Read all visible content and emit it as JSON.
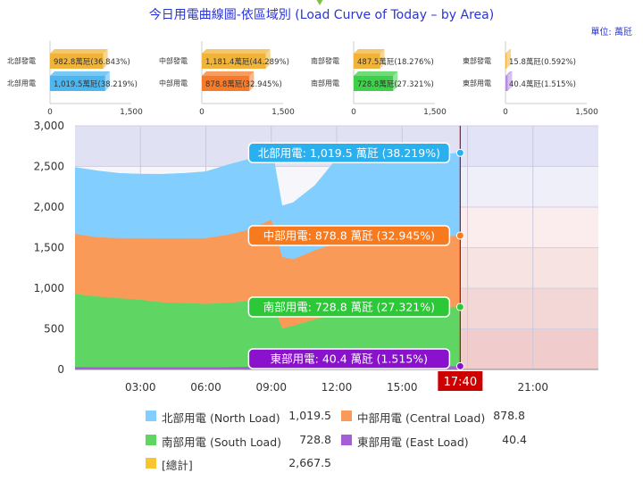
{
  "header": {
    "title": "今日用電曲線圖-依區域別 (Load Curve of Today – by Area)",
    "unit": "單位: 萬瓩"
  },
  "mini_charts": [
    {
      "gen_label": "北部發電",
      "use_label": "北部用電",
      "gen_value": 982.8,
      "gen_text": "982.8萬瓩(36.843%)",
      "use_value": 1019.5,
      "use_text": "1,019.5萬瓩(38.219%)",
      "use_color": "#4db6f0"
    },
    {
      "gen_label": "中部發電",
      "use_label": "中部用電",
      "gen_value": 1181.4,
      "gen_text": "1,181.4萬瓩(44.289%)",
      "use_value": 878.8,
      "use_text": "878.8萬瓩(32.945%)",
      "use_color": "#f57a2a"
    },
    {
      "gen_label": "南部發電",
      "use_label": "南部用電",
      "gen_value": 487.5,
      "gen_text": "487.5萬瓩(18.276%)",
      "use_value": 728.8,
      "use_text": "728.8萬瓩(27.321%)",
      "use_color": "#3fd04a"
    },
    {
      "gen_label": "東部發電",
      "use_label": "東部用電",
      "gen_value": 15.8,
      "gen_text": "15.8萬瓩(0.592%)",
      "use_value": 40.4,
      "use_text": "40.4萬瓩(1.515%)",
      "use_color": "#b48ee0"
    }
  ],
  "mini_axis": {
    "ticks": [
      "0",
      "1,500"
    ],
    "max": 1500,
    "gen_color": "#f0b43a"
  },
  "colors": {
    "north": "#82cfff",
    "central": "#fa9a58",
    "south": "#5fd563",
    "east": "#a45fd8",
    "total": "#f7c52e",
    "cursor": "#cc0000",
    "cursor_label_bg": "#cc0000"
  },
  "chart_data": {
    "type": "area",
    "stacked": true,
    "ylim": [
      0,
      3000
    ],
    "y_ticks": [
      0,
      500,
      1000,
      1500,
      2000,
      2500,
      3000
    ],
    "y_tick_labels": [
      "0",
      "500",
      "1,000",
      "1,500",
      "2,000",
      "2,500",
      "3,000"
    ],
    "xlim_hours": [
      0,
      24
    ],
    "x_ticks_hours": [
      3,
      6,
      9,
      12,
      15,
      18,
      21
    ],
    "x_tick_labels": [
      "03:00",
      "06:00",
      "09:00",
      "12:00",
      "15:00",
      "18:00",
      "21:00"
    ],
    "cursor_time_hours": 17.6667,
    "cursor_label": "17:40",
    "time_hours": [
      0,
      1,
      2,
      3,
      4,
      5,
      6,
      7,
      8,
      9,
      9.5,
      10,
      11,
      12,
      13,
      14,
      15,
      16,
      17,
      17.6667
    ],
    "series": [
      {
        "name": "東部用電 (East Load)",
        "key": "east",
        "values": [
          30,
          29,
          28,
          28,
          27,
          27,
          28,
          30,
          33,
          36,
          37,
          37,
          38,
          38,
          39,
          39,
          40,
          40,
          40,
          40.4
        ]
      },
      {
        "name": "南部用電 (South Load)",
        "key": "south",
        "values": [
          900,
          870,
          850,
          830,
          800,
          790,
          780,
          790,
          810,
          830,
          470,
          500,
          580,
          640,
          660,
          680,
          700,
          710,
          720,
          728.8
        ]
      },
      {
        "name": "中部用電 (Central Load)",
        "key": "central",
        "values": [
          740,
          730,
          740,
          760,
          790,
          800,
          810,
          840,
          880,
          980,
          880,
          820,
          850,
          880,
          880,
          880,
          880,
          880,
          880,
          878.8
        ]
      },
      {
        "name": "北部用電 (North Load)",
        "key": "north",
        "values": [
          820,
          820,
          800,
          790,
          790,
          800,
          820,
          860,
          870,
          930,
          630,
          700,
          800,
          1040,
          1060,
          1040,
          1000,
          1010,
          1015,
          1019.5
        ]
      }
    ],
    "bands": [
      {
        "from": 2500,
        "to": 3000,
        "color": "#e3e3f7"
      },
      {
        "from": 2000,
        "to": 2500,
        "color": "#efeffa"
      },
      {
        "from": 1500,
        "to": 2000,
        "color": "#fbeded"
      },
      {
        "from": 1000,
        "to": 1500,
        "color": "#f8e3e3"
      },
      {
        "from": 500,
        "to": 1000,
        "color": "#f3d6d6"
      },
      {
        "from": 0,
        "to": 500,
        "color": "#f0cccc"
      }
    ],
    "tooltips": [
      {
        "key": "north",
        "text": "北部用電: 1,019.5 萬瓩 (38.219%)",
        "bg": "#2ab0ef",
        "border": "#2ab0ef",
        "y": 2667.5
      },
      {
        "key": "central",
        "text": "中部用電: 878.8 萬瓩 (32.945%)",
        "bg": "#f77a1e",
        "border": "#f77a1e",
        "y": 1648.0
      },
      {
        "key": "south",
        "text": "南部用電: 728.8 萬瓩 (27.321%)",
        "bg": "#2dc838",
        "border": "#2dc838",
        "y": 769.2
      },
      {
        "key": "east",
        "text": "東部用電: 40.4 萬瓩 (1.515%)",
        "bg": "#8a12cc",
        "border": "#8a12cc",
        "y": 40.4
      }
    ]
  },
  "legend": [
    {
      "label": "北部用電 (North Load)",
      "value": "1,019.5",
      "color": "#82cfff"
    },
    {
      "label": "中部用電 (Central Load)",
      "value": "878.8",
      "color": "#fa9a58"
    },
    {
      "label": "南部用電 (South Load)",
      "value": "728.8",
      "color": "#5fd563"
    },
    {
      "label": "東部用電 (East Load)",
      "value": "40.4",
      "color": "#a45fd8"
    },
    {
      "label": "[總計]",
      "value": "2,667.5",
      "color": "#f7c52e"
    }
  ]
}
